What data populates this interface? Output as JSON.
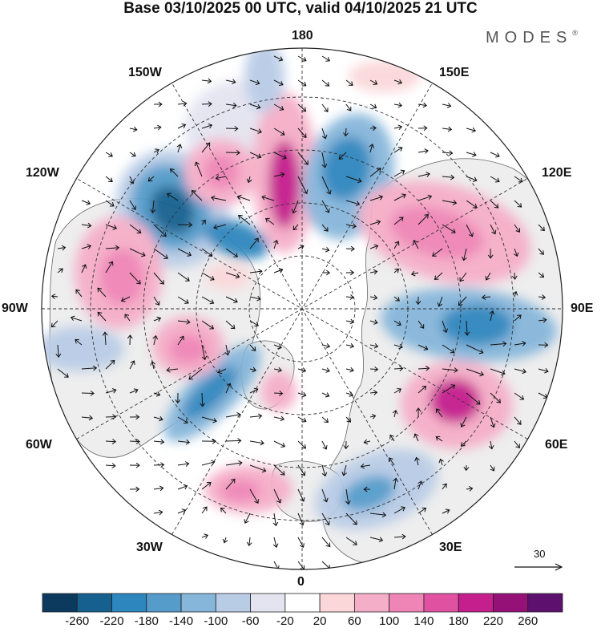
{
  "title": "Base 03/10/2025 00 UTC, valid 04/10/2025 21 UTC",
  "brand": "MODES",
  "brand_mark": "®",
  "longitude_labels": {
    "lon_180": "180",
    "lon_150e": "150E",
    "lon_120e": "120E",
    "lon_90e": "90E",
    "lon_60e": "60E",
    "lon_30e": "30E",
    "lon_0": "0",
    "lon_30w": "30W",
    "lon_60w": "60W",
    "lon_90w": "90W",
    "lon_120w": "120W",
    "lon_150w": "150W"
  },
  "reference_vector": "30",
  "colorbar": {
    "colors": [
      "#0b3a5e",
      "#15608f",
      "#2e86be",
      "#559ccb",
      "#86b6da",
      "#b9cce6",
      "#e4e4f1",
      "#ffffff",
      "#fbd7d9",
      "#f5aec7",
      "#ef84b6",
      "#e052a1",
      "#c51f8d",
      "#951177",
      "#5e106e"
    ],
    "levels": [
      "-260",
      "-220",
      "-180",
      "-140",
      "-100",
      "-60",
      "-20",
      "20",
      "60",
      "100",
      "140",
      "180",
      "220",
      "260"
    ]
  },
  "colors": {
    "land": "#eeeeee",
    "grid": "#333333",
    "coast": "#555555",
    "arrow": "#111111"
  }
}
